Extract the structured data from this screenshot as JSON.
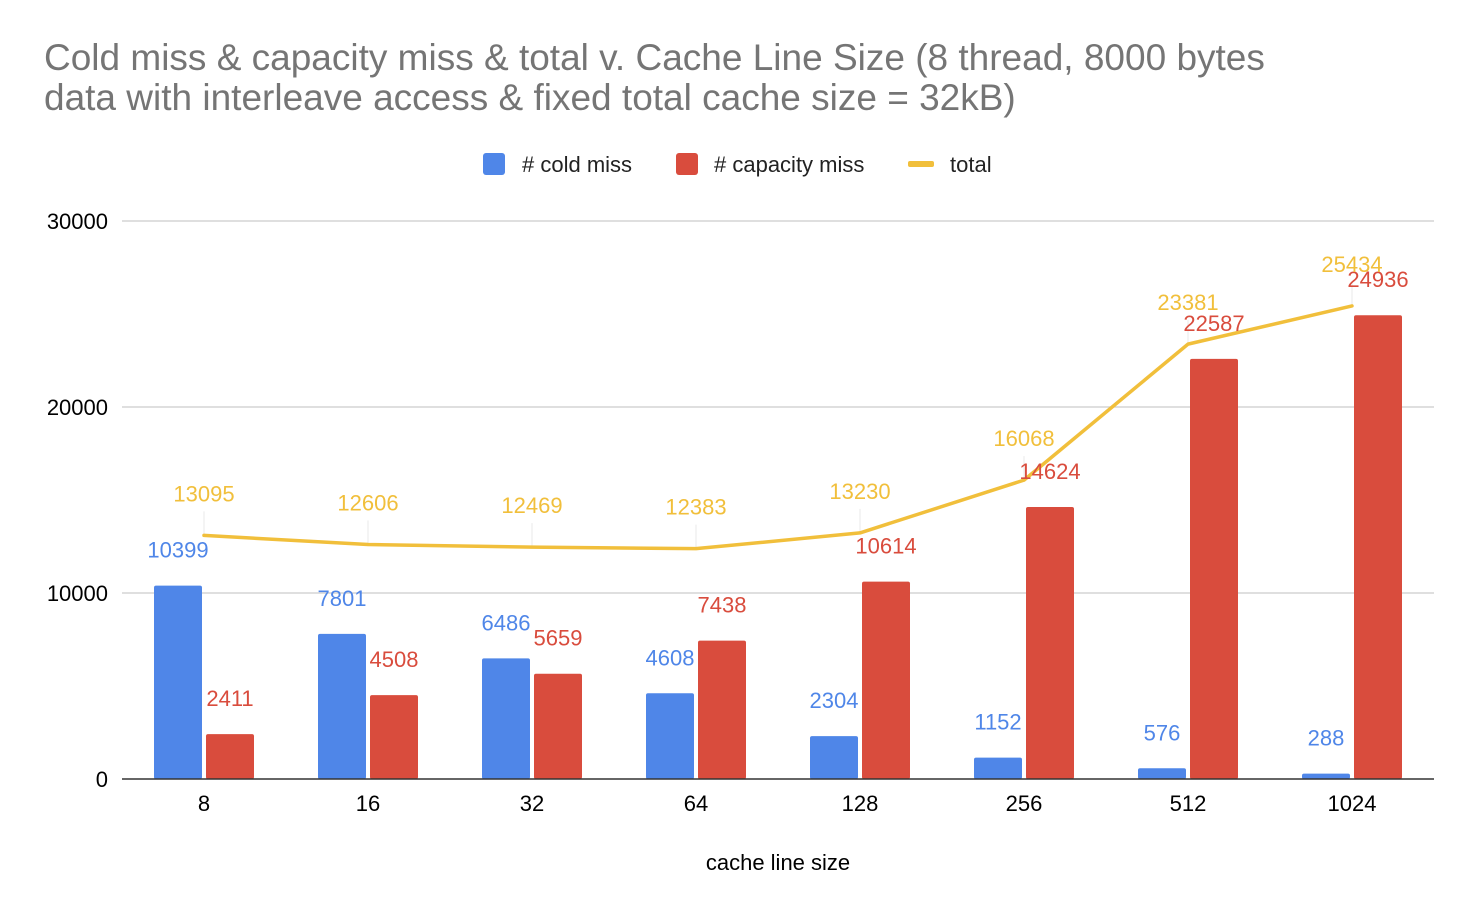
{
  "chart_data": {
    "type": "bar",
    "title_lines": [
      "Cold miss & capacity miss & total v. Cache Line Size (8 thread, 8000 bytes",
      "data with interleave access & fixed total cache size = 32kB)"
    ],
    "categories": [
      "8",
      "16",
      "32",
      "64",
      "128",
      "256",
      "512",
      "1024"
    ],
    "series": [
      {
        "name": "# cold miss",
        "kind": "bar",
        "color": "#4f86e8",
        "values": [
          10399,
          7801,
          6486,
          4608,
          2304,
          1152,
          576,
          288
        ]
      },
      {
        "name": "# capacity miss",
        "kind": "bar",
        "color": "#d94c3d",
        "values": [
          2411,
          4508,
          5659,
          7438,
          10614,
          14624,
          22587,
          24936
        ]
      },
      {
        "name": "total",
        "kind": "line",
        "color": "#f1bf3b",
        "values": [
          13095,
          12606,
          12469,
          12383,
          13230,
          16068,
          23381,
          25434
        ]
      }
    ],
    "xlabel": "cache line size",
    "ylabel": "",
    "ylim": [
      0,
      30000
    ],
    "yticks": [
      0,
      10000,
      20000,
      30000
    ],
    "grid": true,
    "legend_position": "top-center",
    "gridline_color": "#cccccc",
    "axis_color": "#333333"
  }
}
